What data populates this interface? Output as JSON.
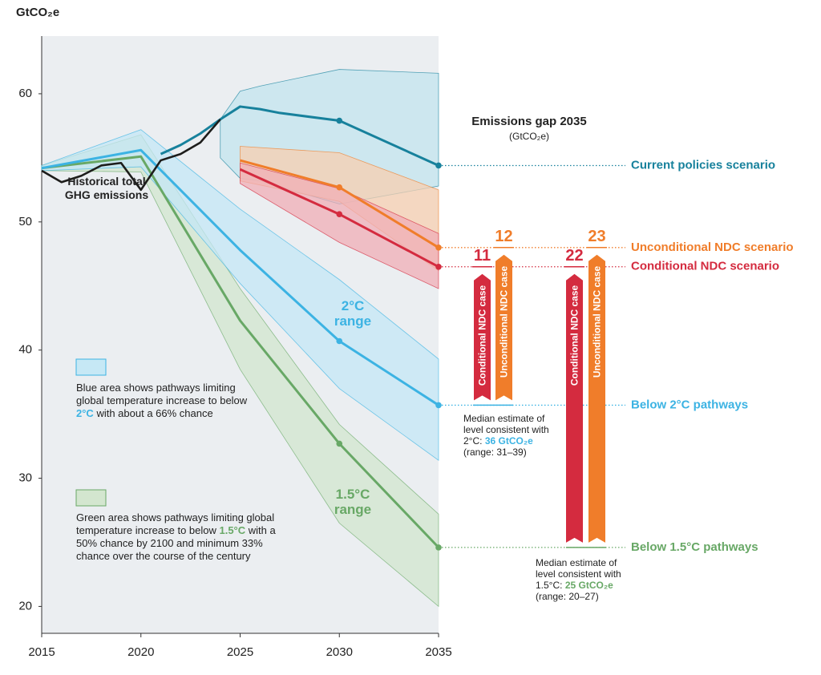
{
  "chart_data": {
    "type": "line",
    "y_label": "GtCO₂e",
    "xlim": [
      2015,
      2035
    ],
    "ylim": [
      17.9,
      64.5
    ],
    "xticks": [
      2015,
      2020,
      2025,
      2030,
      2035
    ],
    "yticks": [
      20,
      30,
      40,
      50,
      60
    ],
    "series": [
      {
        "name": "Historical total GHG emissions",
        "color": "#1d1d1b",
        "x": [
          2015,
          2016,
          2017,
          2018,
          2019,
          2020,
          2021,
          2022,
          2023,
          2024
        ],
        "values": [
          54.0,
          53.1,
          53.6,
          54.4,
          54.6,
          52.5,
          54.8,
          55.3,
          56.2,
          58.0
        ]
      },
      {
        "name": "Current policies scenario",
        "color": "#17819c",
        "x": [
          2021,
          2022,
          2023,
          2024,
          2025,
          2026,
          2027,
          2030,
          2035
        ],
        "values": [
          55.3,
          56.0,
          56.9,
          58.0,
          59.0,
          58.8,
          58.5,
          57.9,
          54.4
        ],
        "range": {
          "fill": "#c3e4ed",
          "x": [
            2024,
            2025,
            2026,
            2030,
            2035
          ],
          "upper": [
            58.0,
            60.2,
            60.6,
            61.9,
            61.6
          ],
          "lower": [
            55.0,
            53.4,
            53.2,
            51.4,
            52.8
          ]
        }
      },
      {
        "name": "Unconditional NDC scenario",
        "color": "#f07d2a",
        "x": [
          2025,
          2030,
          2035
        ],
        "values": [
          54.8,
          52.7,
          48.0
        ],
        "range": {
          "fill": "#f7cfb0",
          "x": [
            2025,
            2030,
            2035
          ],
          "upper": [
            55.9,
            55.4,
            52.5
          ],
          "lower": [
            53.2,
            51.6,
            46.2
          ]
        }
      },
      {
        "name": "Conditional NDC scenario",
        "color": "#d42b3f",
        "x": [
          2025,
          2030,
          2035
        ],
        "values": [
          54.1,
          50.6,
          46.5
        ],
        "range": {
          "fill": "#f0aeb6",
          "x": [
            2025,
            2030,
            2035
          ],
          "upper": [
            54.6,
            52.6,
            49.1
          ],
          "lower": [
            53.0,
            48.4,
            44.8
          ]
        }
      },
      {
        "name": "Below 2°C pathways",
        "color": "#3cb3e3",
        "x": [
          2015,
          2020,
          2025,
          2030,
          2035
        ],
        "values": [
          54.2,
          55.6,
          47.8,
          40.7,
          35.7
        ],
        "range": {
          "fill": "#c4e7f6",
          "x": [
            2015,
            2020,
            2025,
            2030,
            2035
          ],
          "upper": [
            54.4,
            57.2,
            51.0,
            45.5,
            39.3
          ],
          "lower": [
            54.0,
            54.3,
            45.2,
            37.0,
            31.4
          ]
        }
      },
      {
        "name": "Below 1.5°C pathways",
        "color": "#68a866",
        "x": [
          2015,
          2020,
          2025,
          2030,
          2035
        ],
        "values": [
          54.2,
          55.1,
          42.3,
          32.7,
          24.6
        ],
        "range": {
          "fill": "#d2e5ce",
          "x": [
            2015,
            2020,
            2025,
            2030,
            2035
          ],
          "upper": [
            54.4,
            56.8,
            44.8,
            34.2,
            27.2
          ],
          "lower": [
            54.0,
            53.9,
            38.5,
            26.5,
            20.0
          ]
        }
      }
    ],
    "annotations": [
      "2°C range",
      "1.5°C range"
    ],
    "legend": [
      {
        "color": "#c6e8f5",
        "parts": [
          "Blue area shows pathways limiting global temperature increase to below ",
          "2°C",
          " with about a 66% chance"
        ]
      },
      {
        "color": "#d3e6cf",
        "parts": [
          "Green area shows pathways limiting global temperature increase to below ",
          "1.5°C",
          " with a 50% chance by 2100 and minimum 33% chance over the course of the century"
        ]
      }
    ],
    "gap": {
      "title": "Emissions gap 2035",
      "unit": "(GtCO₂e)",
      "bars": [
        {
          "value": 11,
          "case": "Conditional NDC case"
        },
        {
          "value": 12,
          "case": "Unconditional NDC case"
        },
        {
          "value": 22,
          "case": "Conditional NDC case"
        },
        {
          "value": 23,
          "case": "Unconditional NDC case"
        }
      ],
      "notes": [
        {
          "parts": [
            "Median estimate of level consistent with 2°C: ",
            "36 GtCO₂e",
            " (range: 31–39)"
          ]
        },
        {
          "parts": [
            "Median estimate of level consistent with 1.5°C: ",
            "25 GtCO₂e",
            " (range: 20–27)"
          ]
        }
      ]
    }
  }
}
